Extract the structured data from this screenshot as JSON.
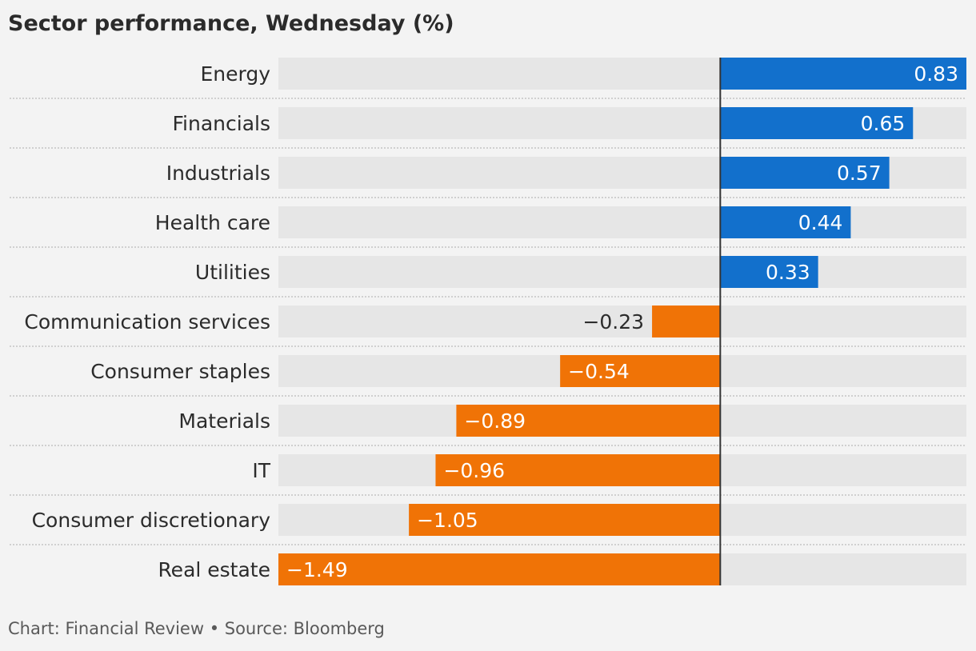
{
  "chart_data": {
    "type": "bar",
    "orientation": "horizontal",
    "title": "Sector performance, Wednesday (%)",
    "categories": [
      "Energy",
      "Financials",
      "Industrials",
      "Health care",
      "Utilities",
      "Communication services",
      "Consumer staples",
      "Materials",
      "IT",
      "Consumer discretionary",
      "Real estate"
    ],
    "values": [
      0.83,
      0.65,
      0.57,
      0.44,
      0.33,
      -0.23,
      -0.54,
      -0.89,
      -0.96,
      -1.05,
      -1.49
    ],
    "value_labels": [
      "0.83",
      "0.65",
      "0.57",
      "0.44",
      "0.33",
      "−0.23",
      "−0.54",
      "−0.89",
      "−0.96",
      "−1.05",
      "−1.49"
    ],
    "xlim": [
      -1.49,
      0.83
    ],
    "colors": {
      "positive": "#1270cc",
      "negative": "#f07306",
      "track": "#e6e6e6",
      "zero_line": "#333333"
    }
  },
  "footer": {
    "source": "Chart: Financial Review • Source: Bloomberg"
  }
}
